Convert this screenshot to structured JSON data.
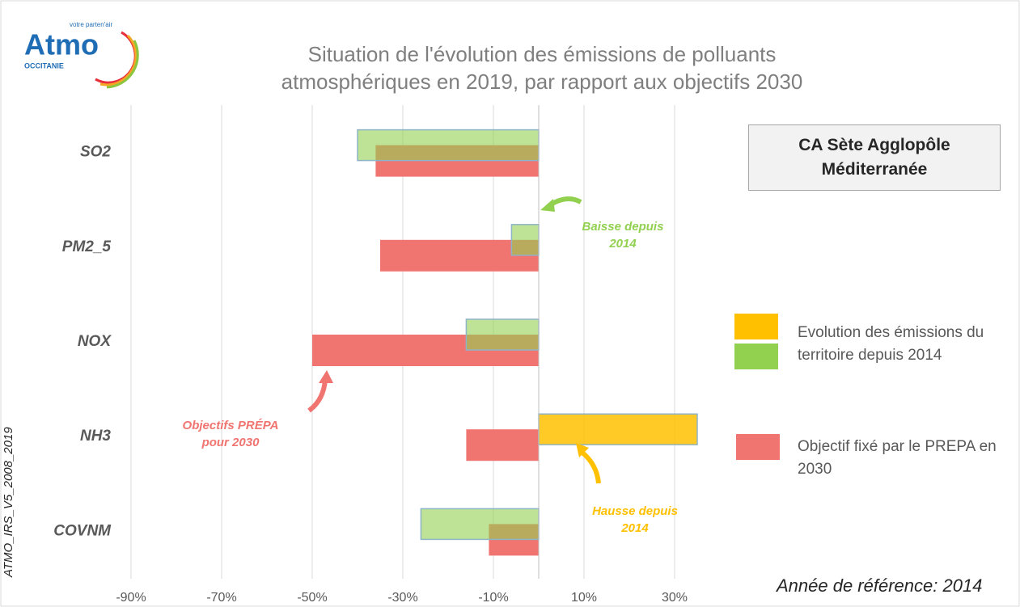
{
  "logo": {
    "name": "Atmo",
    "tagline": "votre parten'air",
    "region": "OCCITANIE"
  },
  "chart_data": {
    "type": "hbar",
    "title": "Situation de l'évolution des émissions de polluants atmosphériques en 2019, par rapport aux objectifs 2030",
    "categories": [
      "SO2",
      "PM2_5",
      "NOX",
      "NH3",
      "COVNM"
    ],
    "series": [
      {
        "name": "Evolution des émissions du territoire depuis 2014",
        "color": "#92d050",
        "positive_color": "#ffc000",
        "values": [
          -40,
          -6,
          -16,
          35,
          -26
        ]
      },
      {
        "name": "Objectif fixé par le PREPA en 2030",
        "color": "#f07470",
        "values": [
          -36,
          -35,
          -50,
          -16,
          -11
        ]
      }
    ],
    "xlim": [
      -100,
      40
    ],
    "xticks": [
      {
        "value": -90,
        "label": "-90%"
      },
      {
        "value": -70,
        "label": "-70%"
      },
      {
        "value": -50,
        "label": "-50%"
      },
      {
        "value": -30,
        "label": "-30%"
      },
      {
        "value": -10,
        "label": "-10%"
      },
      {
        "value": 10,
        "label": "10%"
      },
      {
        "value": 30,
        "label": "30%"
      }
    ],
    "grid": true,
    "territory": "CA Sète Agglopôle Méditerranée",
    "annotations": [
      "Baisse depuis 2014",
      "Objectifs PRÉPA pour 2030",
      "Hausse depuis 2014"
    ],
    "reference": "Année de référence: 2014",
    "source": "ATMO_IRS_V5_2008_2019"
  }
}
